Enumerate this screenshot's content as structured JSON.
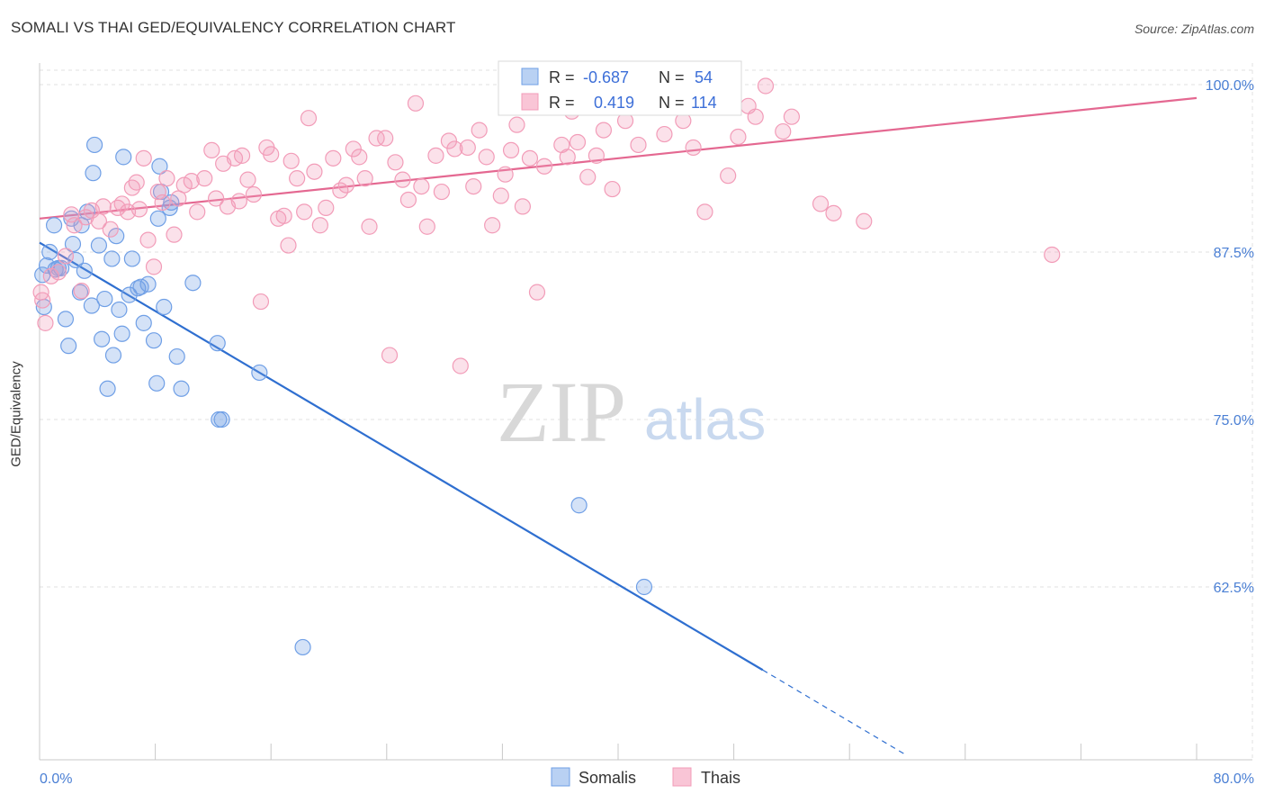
{
  "header": {
    "title": "SOMALI VS THAI GED/EQUIVALENCY CORRELATION CHART",
    "source": "Source: ZipAtlas.com"
  },
  "watermark": {
    "zip": "ZIP",
    "atlas": "atlas"
  },
  "chart_data": {
    "type": "scatter",
    "ylabel": "GED/Equivalency",
    "xlim": [
      0,
      80
    ],
    "ylim": [
      50,
      102
    ],
    "x_tick_labels": [
      "0.0%",
      "80.0%"
    ],
    "y_ticks": [
      62.5,
      75.0,
      87.5,
      100.0
    ],
    "y_tick_labels": [
      "62.5%",
      "75.0%",
      "87.5%",
      "100.0%"
    ],
    "grid": true,
    "legend_position": "top-center",
    "colors": {
      "somali": "#6f9fe6",
      "thai": "#f29cb8",
      "somali_line": "#2f6fd0",
      "thai_line": "#e46891"
    },
    "stats": [
      {
        "r_label": "R = ",
        "r": "-0.687",
        "n_label": "N = ",
        "n": "54"
      },
      {
        "r_label": "R = ",
        "r": "0.419",
        "n_label": "N = ",
        "n": "114"
      }
    ],
    "series": [
      {
        "name": "Somalis",
        "trend": {
          "x_start": 0,
          "y_start": 88.2,
          "x_end": 50,
          "y_end": 56.3,
          "dash_to_x": 60,
          "dash_to_y": 49.9
        },
        "points": [
          [
            0.2,
            85.8
          ],
          [
            0.3,
            83.4
          ],
          [
            0.5,
            86.5
          ],
          [
            0.7,
            87.5
          ],
          [
            1.0,
            89.5
          ],
          [
            1.1,
            86.2
          ],
          [
            1.3,
            86.3
          ],
          [
            1.5,
            86.3
          ],
          [
            1.8,
            82.5
          ],
          [
            2.0,
            80.5
          ],
          [
            2.2,
            90.0
          ],
          [
            2.3,
            88.1
          ],
          [
            2.5,
            86.9
          ],
          [
            2.8,
            84.5
          ],
          [
            2.9,
            89.5
          ],
          [
            3.1,
            86.1
          ],
          [
            3.3,
            90.5
          ],
          [
            3.6,
            83.5
          ],
          [
            3.7,
            93.4
          ],
          [
            3.8,
            95.5
          ],
          [
            4.1,
            88.0
          ],
          [
            4.3,
            81.0
          ],
          [
            4.5,
            84.0
          ],
          [
            4.7,
            77.3
          ],
          [
            5.0,
            87.0
          ],
          [
            5.1,
            79.8
          ],
          [
            5.3,
            88.7
          ],
          [
            5.5,
            83.2
          ],
          [
            5.7,
            81.4
          ],
          [
            5.8,
            94.6
          ],
          [
            6.2,
            84.3
          ],
          [
            6.4,
            87.0
          ],
          [
            7.0,
            84.9
          ],
          [
            7.2,
            82.2
          ],
          [
            7.5,
            85.1
          ],
          [
            7.9,
            80.9
          ],
          [
            8.1,
            77.7
          ],
          [
            8.2,
            90.0
          ],
          [
            8.3,
            93.9
          ],
          [
            8.6,
            83.4
          ],
          [
            9.0,
            90.8
          ],
          [
            9.1,
            91.2
          ],
          [
            9.5,
            79.7
          ],
          [
            9.8,
            77.3
          ],
          [
            10.6,
            85.2
          ],
          [
            12.3,
            80.7
          ],
          [
            12.4,
            75.0
          ],
          [
            12.6,
            75.0
          ],
          [
            15.2,
            78.5
          ],
          [
            18.2,
            58.0
          ],
          [
            37.3,
            68.6
          ],
          [
            41.8,
            62.5
          ],
          [
            8.4,
            92.0
          ],
          [
            6.8,
            84.8
          ]
        ]
      },
      {
        "name": "Thais",
        "trend": {
          "x_start": 0,
          "y_start": 90.0,
          "x_end": 80,
          "y_end": 99.0
        },
        "points": [
          [
            0.1,
            84.5
          ],
          [
            0.2,
            83.9
          ],
          [
            0.4,
            82.2
          ],
          [
            0.8,
            85.7
          ],
          [
            1.3,
            86.0
          ],
          [
            1.8,
            87.2
          ],
          [
            2.2,
            90.3
          ],
          [
            2.4,
            89.5
          ],
          [
            2.9,
            84.6
          ],
          [
            3.2,
            90.1
          ],
          [
            3.6,
            90.6
          ],
          [
            4.1,
            89.8
          ],
          [
            4.4,
            90.9
          ],
          [
            4.9,
            89.2
          ],
          [
            5.4,
            90.8
          ],
          [
            5.7,
            91.1
          ],
          [
            6.1,
            90.5
          ],
          [
            6.4,
            92.3
          ],
          [
            6.7,
            92.7
          ],
          [
            6.9,
            90.7
          ],
          [
            7.2,
            94.5
          ],
          [
            7.5,
            88.4
          ],
          [
            7.9,
            86.4
          ],
          [
            8.2,
            92.0
          ],
          [
            8.5,
            91.2
          ],
          [
            8.8,
            93.0
          ],
          [
            9.3,
            88.8
          ],
          [
            9.6,
            91.5
          ],
          [
            10.0,
            92.5
          ],
          [
            10.5,
            92.8
          ],
          [
            10.9,
            90.5
          ],
          [
            11.4,
            93.0
          ],
          [
            11.9,
            95.1
          ],
          [
            12.2,
            91.5
          ],
          [
            12.7,
            94.1
          ],
          [
            13.0,
            90.9
          ],
          [
            13.5,
            94.5
          ],
          [
            14.0,
            94.7
          ],
          [
            14.4,
            92.9
          ],
          [
            14.8,
            91.8
          ],
          [
            15.3,
            83.8
          ],
          [
            15.7,
            95.3
          ],
          [
            16.0,
            94.8
          ],
          [
            16.5,
            90.0
          ],
          [
            16.9,
            90.2
          ],
          [
            17.4,
            94.3
          ],
          [
            17.8,
            93.0
          ],
          [
            18.3,
            90.5
          ],
          [
            18.6,
            97.5
          ],
          [
            19.0,
            93.5
          ],
          [
            19.4,
            89.5
          ],
          [
            19.8,
            90.8
          ],
          [
            20.3,
            94.5
          ],
          [
            20.8,
            92.1
          ],
          [
            21.2,
            92.5
          ],
          [
            21.7,
            95.2
          ],
          [
            22.1,
            94.6
          ],
          [
            22.5,
            93.0
          ],
          [
            22.8,
            89.4
          ],
          [
            23.3,
            96.0
          ],
          [
            23.9,
            96.0
          ],
          [
            24.2,
            79.8
          ],
          [
            24.6,
            94.2
          ],
          [
            25.1,
            92.9
          ],
          [
            25.5,
            91.4
          ],
          [
            26.0,
            98.6
          ],
          [
            26.4,
            92.4
          ],
          [
            26.8,
            89.4
          ],
          [
            27.4,
            94.7
          ],
          [
            27.8,
            92.0
          ],
          [
            28.3,
            95.8
          ],
          [
            28.7,
            95.2
          ],
          [
            29.1,
            79.0
          ],
          [
            29.6,
            95.3
          ],
          [
            30.0,
            92.4
          ],
          [
            30.4,
            96.6
          ],
          [
            30.9,
            94.6
          ],
          [
            31.3,
            89.5
          ],
          [
            31.9,
            91.7
          ],
          [
            32.2,
            93.3
          ],
          [
            32.6,
            95.1
          ],
          [
            33.0,
            97.0
          ],
          [
            33.4,
            90.9
          ],
          [
            33.9,
            94.5
          ],
          [
            34.4,
            84.5
          ],
          [
            34.9,
            93.9
          ],
          [
            35.5,
            98.6
          ],
          [
            36.1,
            95.5
          ],
          [
            36.5,
            94.6
          ],
          [
            37.2,
            95.7
          ],
          [
            37.9,
            93.1
          ],
          [
            38.5,
            94.7
          ],
          [
            39.0,
            96.6
          ],
          [
            39.6,
            92.2
          ],
          [
            40.5,
            97.3
          ],
          [
            41.4,
            95.5
          ],
          [
            43.2,
            96.3
          ],
          [
            44.5,
            97.3
          ],
          [
            45.2,
            95.3
          ],
          [
            46.0,
            90.5
          ],
          [
            47.6,
            93.2
          ],
          [
            48.3,
            96.1
          ],
          [
            49.0,
            98.4
          ],
          [
            49.5,
            97.6
          ],
          [
            50.2,
            99.9
          ],
          [
            51.4,
            96.5
          ],
          [
            52.0,
            97.6
          ],
          [
            54.0,
            91.1
          ],
          [
            54.9,
            90.4
          ],
          [
            57.0,
            89.8
          ],
          [
            70.0,
            87.3
          ],
          [
            36.8,
            98.0
          ],
          [
            17.2,
            88.0
          ],
          [
            13.8,
            91.3
          ]
        ]
      }
    ]
  }
}
